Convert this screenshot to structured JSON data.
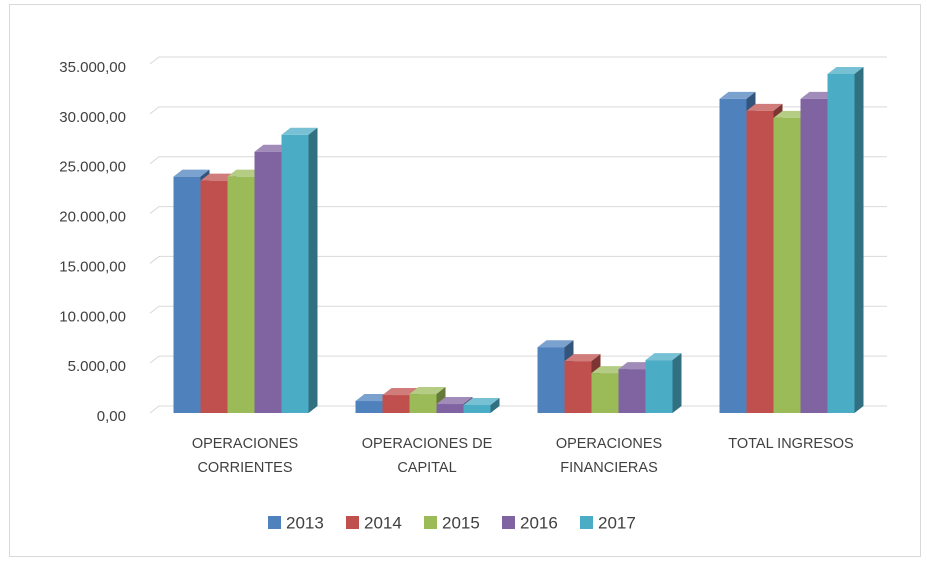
{
  "chart_data": {
    "type": "bar3d",
    "categories": [
      "OPERACIONES CORRIENTES",
      "OPERACIONES DE CAPITAL",
      "OPERACIONES FINANCIERAS",
      "TOTAL INGRESOS"
    ],
    "series": [
      {
        "name": "2013",
        "color": "#4f81bd",
        "values": [
          23700,
          1200,
          6600,
          31500
        ]
      },
      {
        "name": "2014",
        "color": "#c0504d",
        "values": [
          23300,
          1800,
          5200,
          30300
        ]
      },
      {
        "name": "2015",
        "color": "#9bbb59",
        "values": [
          23700,
          1900,
          4000,
          29600
        ]
      },
      {
        "name": "2016",
        "color": "#8064a2",
        "values": [
          26200,
          900,
          4400,
          31500
        ]
      },
      {
        "name": "2017",
        "color": "#4bacc6",
        "values": [
          27900,
          800,
          5300,
          34000
        ]
      }
    ],
    "ylim": [
      0,
      35000
    ],
    "yticks": [
      {
        "value": 0,
        "label": "0,00"
      },
      {
        "value": 5000,
        "label": "5.000,00"
      },
      {
        "value": 10000,
        "label": "10.000,00"
      },
      {
        "value": 15000,
        "label": "15.000,00"
      },
      {
        "value": 20000,
        "label": "20.000,00"
      },
      {
        "value": 25000,
        "label": "25.000,00"
      },
      {
        "value": 30000,
        "label": "30.000,00"
      },
      {
        "value": 35000,
        "label": "35.000,00"
      }
    ],
    "grid": true,
    "legend": "bottom"
  }
}
